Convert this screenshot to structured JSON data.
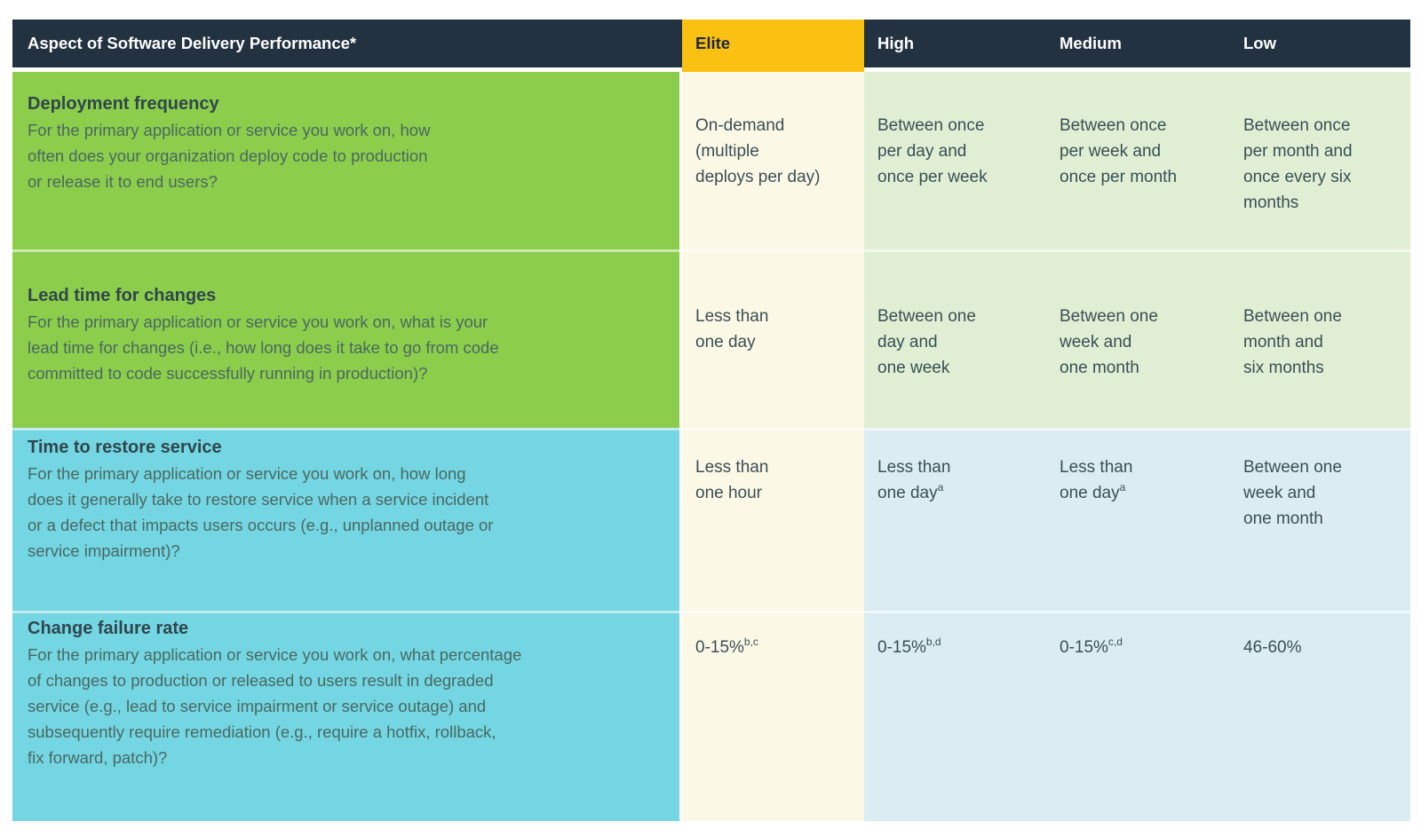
{
  "table": {
    "header": {
      "aspect": "Aspect of Software Delivery Performance*",
      "levels": [
        "Elite",
        "High",
        "Medium",
        "Low"
      ]
    },
    "rows": [
      {
        "title": "Deployment frequency",
        "question": "For the primary application or service you work on, how\noften does your organization deploy code to production\nor release it to end users?",
        "cells": [
          {
            "text": "On-demand\n(multiple\ndeploys per day)",
            "sup": ""
          },
          {
            "text": "Between once\nper day and\nonce per week",
            "sup": ""
          },
          {
            "text": "Between once\nper week and\nonce per month",
            "sup": ""
          },
          {
            "text": "Between once\nper month and\nonce every six\nmonths",
            "sup": ""
          }
        ]
      },
      {
        "title": "Lead time for changes",
        "question": "For the primary application or service you work on, what is your\nlead time for changes (i.e., how long does it take to go from code\ncommitted to code successfully running in production)?",
        "cells": [
          {
            "text": "Less than\none day",
            "sup": ""
          },
          {
            "text": "Between one\nday and\none week",
            "sup": ""
          },
          {
            "text": "Between one\nweek and\none month",
            "sup": ""
          },
          {
            "text": "Between one\nmonth and\nsix months",
            "sup": ""
          }
        ]
      },
      {
        "title": "Time to restore service",
        "question": "For the primary application or service you work on, how long\ndoes it generally take to restore service when a service incident\nor a defect that impacts users occurs (e.g., unplanned outage or\nservice impairment)?",
        "cells": [
          {
            "text": "Less than\none hour",
            "sup": ""
          },
          {
            "text": "Less than\none day",
            "sup": "a"
          },
          {
            "text": "Less than\none day",
            "sup": "a"
          },
          {
            "text": "Between one\nweek and\none month",
            "sup": ""
          }
        ]
      },
      {
        "title": "Change failure rate",
        "question": "For the primary application or service you work on, what percentage\nof changes to production or released to users result in degraded\nservice (e.g., lead to service impairment or service outage) and\nsubsequently require remediation (e.g., require a hotfix, rollback,\nfix forward, patch)?",
        "cells": [
          {
            "text": "0-15%",
            "sup": "b,c"
          },
          {
            "text": "0-15%",
            "sup": "b,d"
          },
          {
            "text": "0-15%",
            "sup": "c,d"
          },
          {
            "text": "46-60%",
            "sup": ""
          }
        ]
      }
    ],
    "colors": {
      "header_bg": "#233240",
      "elite_header_bg": "#FBC112",
      "question_green": "#8CCE4B",
      "question_cyan": "#73D6E2",
      "elite_column_bg": "#FCF8E6",
      "level_green_bg": "#E0EFD4",
      "level_blue_bg": "#DBEDF3",
      "header_text": "#FFFFFF",
      "elite_header_text": "#1C2733",
      "title_text": "#2F474C",
      "question_text": "#4A6862",
      "value_text": "#3A4F55"
    }
  }
}
